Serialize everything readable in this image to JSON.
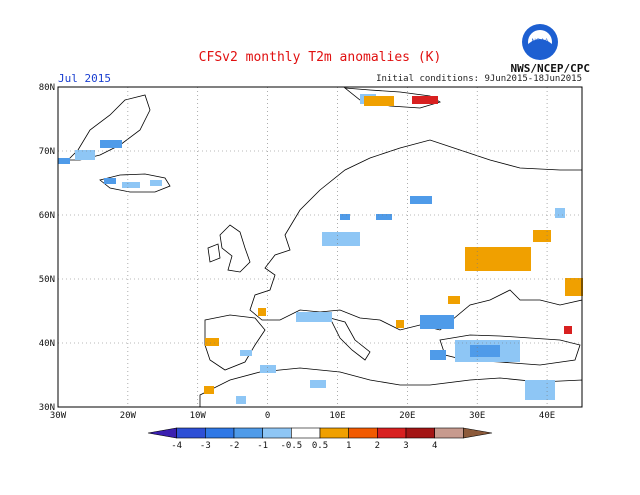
{
  "header": {
    "title": "CFSv2 monthly T2m anomalies (K)",
    "month": "Jul 2015",
    "initial_conditions": "Initial conditions: 9Jun2015-18Jun2015",
    "agency": "NWS/NCEP/CPC",
    "logo_text": "NOAA"
  },
  "map": {
    "lon_range": [
      -30,
      45
    ],
    "lat_range": [
      30,
      80
    ],
    "lon_ticks": [
      {
        "value": -30,
        "label": "30W"
      },
      {
        "value": -20,
        "label": "20W"
      },
      {
        "value": -10,
        "label": "10W"
      },
      {
        "value": 0,
        "label": "0"
      },
      {
        "value": 10,
        "label": "10E"
      },
      {
        "value": 20,
        "label": "20E"
      },
      {
        "value": 30,
        "label": "30E"
      },
      {
        "value": 40,
        "label": "40E"
      }
    ],
    "lat_ticks": [
      {
        "value": 30,
        "label": "30N"
      },
      {
        "value": 40,
        "label": "40N"
      },
      {
        "value": 50,
        "label": "50N"
      },
      {
        "value": 60,
        "label": "60N"
      },
      {
        "value": 70,
        "label": "70N"
      },
      {
        "value": 80,
        "label": "80N"
      }
    ],
    "grid": "dotted"
  },
  "colorbar": {
    "levels": [
      "-4",
      "-3",
      "-2",
      "-1",
      "-0.5",
      "0.5",
      "1",
      "2",
      "3",
      "4"
    ],
    "colors": [
      "#3a1fb0",
      "#2d4fd6",
      "#2f78e6",
      "#4f9be9",
      "#8ec6f5",
      "#ffffff",
      "#f0a000",
      "#f25a00",
      "#d82020",
      "#a31515",
      "#c79a8e",
      "#8c5a3a"
    ]
  }
}
